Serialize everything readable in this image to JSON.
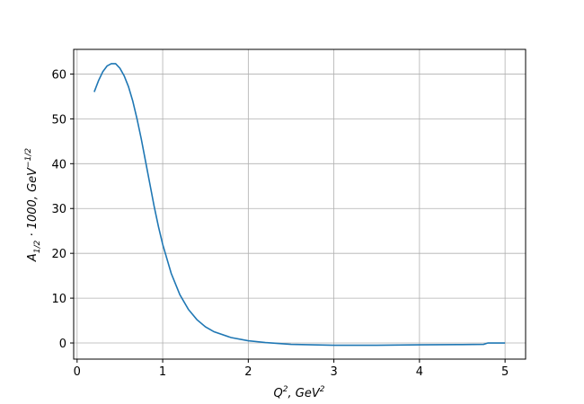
{
  "chart_data": {
    "type": "line",
    "xlabel": [
      "Q",
      "2",
      ", GeV",
      "2"
    ],
    "ylabel": [
      "A",
      "1/2",
      " · 1000, GeV",
      "−1/2"
    ],
    "x": [
      0.2,
      0.25,
      0.3,
      0.35,
      0.4,
      0.45,
      0.5,
      0.55,
      0.6,
      0.65,
      0.7,
      0.75,
      0.8,
      0.85,
      0.9,
      0.95,
      1.0,
      1.1,
      1.2,
      1.3,
      1.4,
      1.5,
      1.6,
      1.8,
      2.0,
      2.2,
      2.5,
      3.0,
      3.5,
      4.0,
      4.5,
      4.75,
      4.8,
      5.0
    ],
    "series": [
      {
        "color": "#1f77b4",
        "values": [
          56,
          58.5,
          60.5,
          61.8,
          62.3,
          62.3,
          61.3,
          59.6,
          57.2,
          54,
          50,
          45.5,
          40.5,
          35.5,
          30.5,
          26,
          22,
          15.5,
          10.8,
          7.5,
          5.2,
          3.6,
          2.5,
          1.2,
          0.5,
          0.1,
          -0.3,
          -0.5,
          -0.5,
          -0.4,
          -0.35,
          -0.3,
          0,
          0
        ]
      }
    ],
    "xlim": [
      -0.04,
      5.24
    ],
    "xticks": [
      0,
      1,
      2,
      3,
      4,
      5
    ],
    "ylim": [
      -3.6,
      65.5
    ],
    "yticks": [
      0,
      10,
      20,
      30,
      40,
      50,
      60
    ],
    "grid": true
  }
}
